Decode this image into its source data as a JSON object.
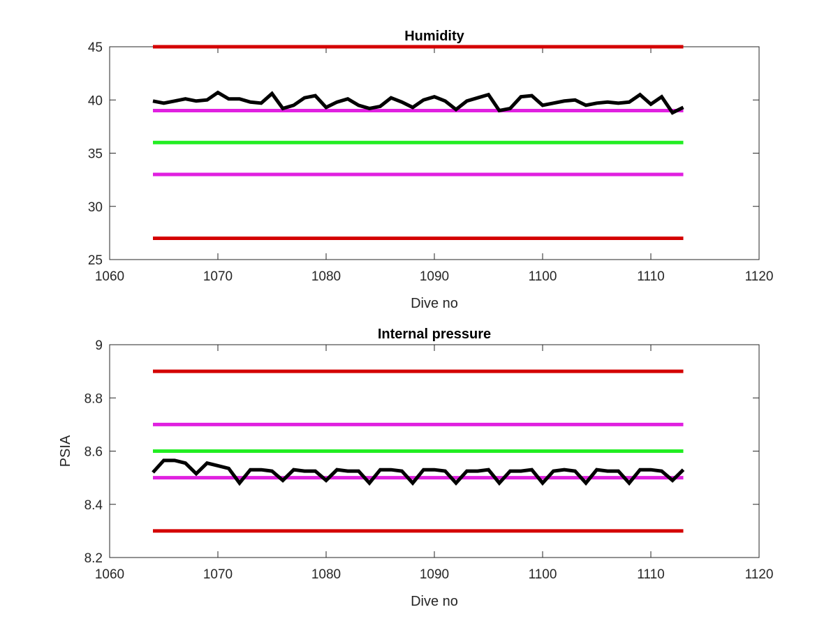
{
  "chart_data": [
    {
      "type": "line",
      "title": "Humidity",
      "xlabel": "Dive no",
      "ylabel": "",
      "xlim": [
        1060,
        1120
      ],
      "ylim": [
        25,
        45
      ],
      "xticks": [
        "1060",
        "1070",
        "1080",
        "1090",
        "1100",
        "1110",
        "1120"
      ],
      "yticks": [
        "25",
        "30",
        "35",
        "40",
        "45"
      ],
      "grid": false,
      "reference_lines": [
        {
          "y": 45,
          "x": [
            1064,
            1113
          ],
          "color": "#d40000"
        },
        {
          "y": 39,
          "x": [
            1064,
            1113
          ],
          "color": "#e020e0"
        },
        {
          "y": 36,
          "x": [
            1064,
            1113
          ],
          "color": "#22ee22"
        },
        {
          "y": 33,
          "x": [
            1064,
            1113
          ],
          "color": "#e020e0"
        },
        {
          "y": 27,
          "x": [
            1064,
            1113
          ],
          "color": "#d40000"
        }
      ],
      "series": [
        {
          "color": "#000000",
          "x": [
            1064,
            1065,
            1066,
            1067,
            1068,
            1069,
            1070,
            1071,
            1072,
            1073,
            1074,
            1075,
            1076,
            1077,
            1078,
            1079,
            1080,
            1081,
            1082,
            1083,
            1084,
            1085,
            1086,
            1087,
            1088,
            1089,
            1090,
            1091,
            1092,
            1093,
            1094,
            1095,
            1096,
            1097,
            1098,
            1099,
            1100,
            1101,
            1102,
            1103,
            1104,
            1105,
            1106,
            1107,
            1108,
            1109,
            1110,
            1111,
            1112,
            1113
          ],
          "y": [
            39.9,
            39.7,
            39.9,
            40.1,
            39.9,
            40.0,
            40.7,
            40.1,
            40.1,
            39.8,
            39.7,
            40.6,
            39.2,
            39.5,
            40.2,
            40.4,
            39.3,
            39.8,
            40.1,
            39.5,
            39.2,
            39.4,
            40.2,
            39.8,
            39.3,
            40.0,
            40.3,
            39.9,
            39.1,
            39.9,
            40.2,
            40.5,
            39.0,
            39.2,
            40.3,
            40.4,
            39.5,
            39.7,
            39.9,
            40.0,
            39.5,
            39.7,
            39.8,
            39.7,
            39.8,
            40.5,
            39.6,
            40.3,
            38.8,
            39.3
          ]
        }
      ]
    },
    {
      "type": "line",
      "title": "Internal pressure",
      "xlabel": "Dive no",
      "ylabel": "PSIA",
      "xlim": [
        1060,
        1120
      ],
      "ylim": [
        8.2,
        9
      ],
      "xticks": [
        "1060",
        "1070",
        "1080",
        "1090",
        "1100",
        "1110",
        "1120"
      ],
      "yticks": [
        "8.2",
        "8.4",
        "8.6",
        "8.8",
        "9"
      ],
      "grid": false,
      "reference_lines": [
        {
          "y": 8.9,
          "x": [
            1064,
            1113
          ],
          "color": "#d40000"
        },
        {
          "y": 8.7,
          "x": [
            1064,
            1113
          ],
          "color": "#e020e0"
        },
        {
          "y": 8.6,
          "x": [
            1064,
            1113
          ],
          "color": "#22ee22"
        },
        {
          "y": 8.5,
          "x": [
            1064,
            1113
          ],
          "color": "#e020e0"
        },
        {
          "y": 8.3,
          "x": [
            1064,
            1113
          ],
          "color": "#d40000"
        }
      ],
      "series": [
        {
          "color": "#000000",
          "x": [
            1064,
            1065,
            1066,
            1067,
            1068,
            1069,
            1070,
            1071,
            1072,
            1073,
            1074,
            1075,
            1076,
            1077,
            1078,
            1079,
            1080,
            1081,
            1082,
            1083,
            1084,
            1085,
            1086,
            1087,
            1088,
            1089,
            1090,
            1091,
            1092,
            1093,
            1094,
            1095,
            1096,
            1097,
            1098,
            1099,
            1100,
            1101,
            1102,
            1103,
            1104,
            1105,
            1106,
            1107,
            1108,
            1109,
            1110,
            1111,
            1112,
            1113
          ],
          "y": [
            8.52,
            8.565,
            8.565,
            8.555,
            8.515,
            8.555,
            8.545,
            8.535,
            8.48,
            8.53,
            8.53,
            8.525,
            8.49,
            8.53,
            8.525,
            8.525,
            8.49,
            8.53,
            8.525,
            8.525,
            8.48,
            8.53,
            8.53,
            8.525,
            8.48,
            8.53,
            8.53,
            8.525,
            8.48,
            8.525,
            8.525,
            8.53,
            8.48,
            8.525,
            8.525,
            8.53,
            8.48,
            8.525,
            8.53,
            8.525,
            8.48,
            8.53,
            8.525,
            8.525,
            8.48,
            8.53,
            8.53,
            8.525,
            8.49,
            8.53
          ]
        }
      ]
    }
  ]
}
